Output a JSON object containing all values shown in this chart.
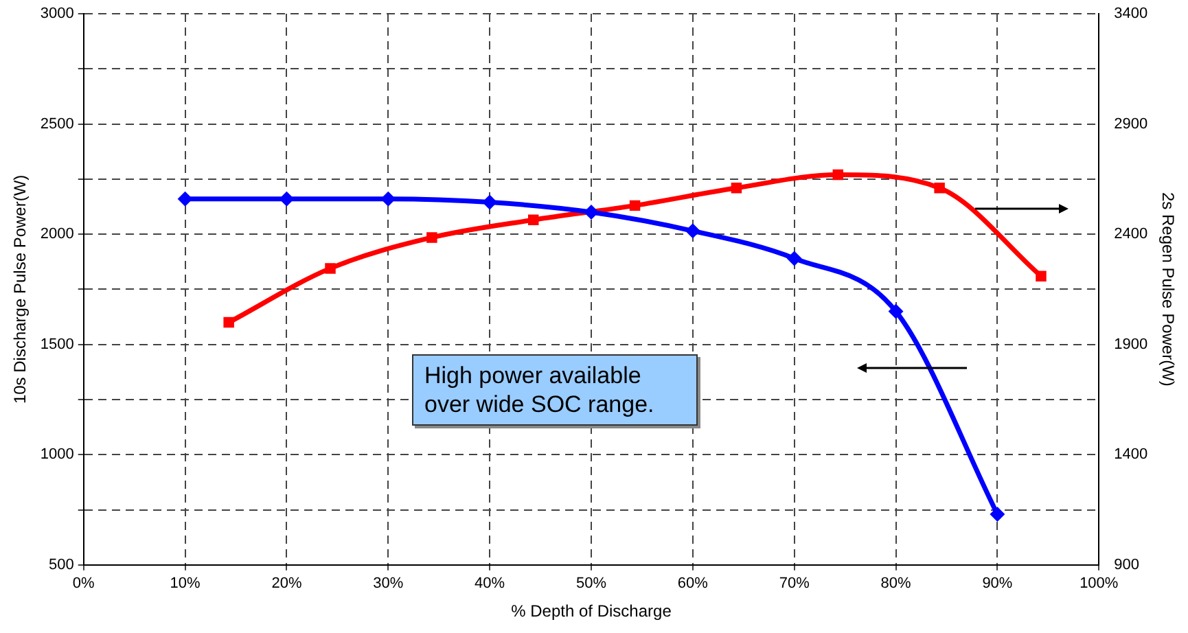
{
  "chart_data": {
    "type": "line",
    "xlabel": "% Depth of Discharge",
    "ylabel": "10s Discharge Pulse Power(W)",
    "y2label": "2s Regen Pulse Power(W)",
    "xlim": [
      0,
      100
    ],
    "xticks": [
      {
        "value": 0,
        "label": "0%"
      },
      {
        "value": 10,
        "label": "10%"
      },
      {
        "value": 20,
        "label": "20%"
      },
      {
        "value": 30,
        "label": "30%"
      },
      {
        "value": 40,
        "label": "40%"
      },
      {
        "value": 50,
        "label": "50%"
      },
      {
        "value": 60,
        "label": "60%"
      },
      {
        "value": 70,
        "label": "70%"
      },
      {
        "value": 80,
        "label": "80%"
      },
      {
        "value": 90,
        "label": "90%"
      },
      {
        "value": 100,
        "label": "100%"
      }
    ],
    "ylim": [
      500,
      3000
    ],
    "yticks": [
      500,
      {
        "value": 750,
        "label": null
      },
      1000,
      {
        "value": 1250,
        "label": null
      },
      1500,
      {
        "value": 1750,
        "label": null
      },
      2000,
      {
        "value": 2250,
        "label": null
      },
      2500,
      {
        "value": 2750,
        "label": null
      },
      3000
    ],
    "y2lim": [
      900,
      3400
    ],
    "y2ticks": [
      900,
      1400,
      1900,
      2400,
      2900,
      3400
    ],
    "grid": true,
    "legend": false,
    "line_style": "solid",
    "series": [
      {
        "color": "#0000ff",
        "marker": "diamond",
        "x": [
          10,
          20,
          30,
          40,
          50,
          60,
          70,
          80,
          90
        ],
        "values": [
          2160,
          2160,
          2160,
          2145,
          2100,
          2015,
          1890,
          1650,
          730
        ]
      },
      {
        "color": "#ff0000",
        "marker": "square",
        "axis": "y2",
        "x": [
          14.3,
          24.3,
          34.3,
          44.3,
          54.3,
          64.3,
          74.3,
          84.3,
          94.3
        ],
        "values": [
          2000,
          2245,
          2385,
          2465,
          2530,
          2610,
          2670,
          2610,
          2210
        ]
      }
    ],
    "annotations": [
      "High power available over wide SOC range."
    ]
  }
}
